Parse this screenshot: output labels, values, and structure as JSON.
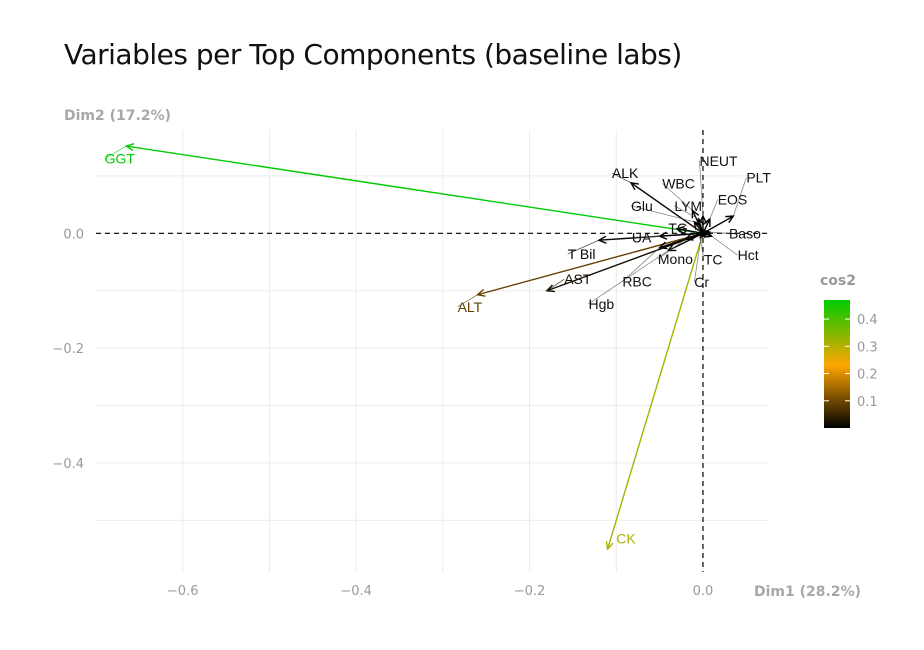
{
  "chart_data": {
    "type": "scatter",
    "subtype": "pca-variable-biplot",
    "title": "Variables per Top Components (baseline labs)",
    "xlabel": "Dim1 (28.2%)",
    "ylabel": "Dim2 (17.2%)",
    "xlim": [
      -0.7,
      0.075
    ],
    "ylim": [
      -0.59,
      0.18
    ],
    "xticks": [
      -0.6,
      -0.4,
      -0.2,
      0.0
    ],
    "xtick_labels": [
      "−0.6",
      "−0.4",
      "−0.2",
      "0.0"
    ],
    "yticks": [
      0.0,
      -0.2,
      -0.4
    ],
    "ytick_labels": [
      "0.0",
      "−0.2",
      "−0.4"
    ],
    "grid": true,
    "reference_lines": {
      "x": 0,
      "y": 0,
      "style": "dashed"
    },
    "color_scale": {
      "name": "cos2",
      "min": 0.0,
      "max": 0.47,
      "stops": [
        {
          "value": 0.0,
          "color": "#000000"
        },
        {
          "value": 0.23,
          "color": "#FFA500"
        },
        {
          "value": 0.47,
          "color": "#00CC00"
        }
      ],
      "ticks": [
        0.1,
        0.2,
        0.3,
        0.4
      ],
      "tick_labels": [
        "0.1",
        "0.2",
        "0.3",
        "0.4"
      ],
      "legend_position": "right"
    },
    "variables": [
      {
        "name": "GGT",
        "x": -0.665,
        "y": 0.152,
        "cos2": 0.47,
        "label_x": -0.69,
        "label_y": 0.13
      },
      {
        "name": "ALT",
        "x": -0.26,
        "y": -0.107,
        "cos2": 0.09,
        "label_x": -0.283,
        "label_y": -0.128
      },
      {
        "name": "CK",
        "x": -0.11,
        "y": -0.55,
        "cos2": 0.31,
        "label_x": -0.1,
        "label_y": -0.532
      },
      {
        "name": "AST",
        "x": -0.18,
        "y": -0.1,
        "cos2": 0.02,
        "label_x": -0.16,
        "label_y": -0.08
      },
      {
        "name": "T Bil",
        "x": -0.12,
        "y": -0.012,
        "cos2": 0.01,
        "label_x": -0.156,
        "label_y": -0.036
      },
      {
        "name": "RBC",
        "x": -0.05,
        "y": -0.025,
        "cos2": 0.0,
        "label_x": -0.093,
        "label_y": -0.084
      },
      {
        "name": "Hgb",
        "x": -0.04,
        "y": -0.03,
        "cos2": 0.0,
        "label_x": -0.132,
        "label_y": -0.123
      },
      {
        "name": "Mono",
        "x": -0.02,
        "y": -0.01,
        "cos2": 0.0,
        "label_x": -0.052,
        "label_y": -0.045
      },
      {
        "name": "UA",
        "x": -0.05,
        "y": -0.005,
        "cos2": 0.0,
        "label_x": -0.082,
        "label_y": -0.007
      },
      {
        "name": "TG",
        "x": -0.03,
        "y": 0.008,
        "cos2": 0.0,
        "label_x": -0.04,
        "label_y": 0.009
      },
      {
        "name": "ALK",
        "x": -0.083,
        "y": 0.088,
        "cos2": 0.01,
        "label_x": -0.105,
        "label_y": 0.105
      },
      {
        "name": "WBC",
        "x": -0.012,
        "y": 0.04,
        "cos2": 0.0,
        "label_x": -0.047,
        "label_y": 0.087
      },
      {
        "name": "Glu",
        "x": -0.01,
        "y": 0.02,
        "cos2": 0.0,
        "label_x": -0.083,
        "label_y": 0.048
      },
      {
        "name": "LYM",
        "x": -0.005,
        "y": 0.025,
        "cos2": 0.0,
        "label_x": -0.033,
        "label_y": 0.048
      },
      {
        "name": "NEUT",
        "x": 0.0,
        "y": 0.03,
        "cos2": 0.0,
        "label_x": -0.004,
        "label_y": 0.126
      },
      {
        "name": "EOS",
        "x": 0.008,
        "y": 0.025,
        "cos2": 0.0,
        "label_x": 0.017,
        "label_y": 0.059
      },
      {
        "name": "PLT",
        "x": 0.035,
        "y": 0.03,
        "cos2": 0.0,
        "label_x": 0.05,
        "label_y": 0.097
      },
      {
        "name": "Baso",
        "x": 0.008,
        "y": 0.002,
        "cos2": 0.0,
        "label_x": 0.03,
        "label_y": 0.0
      },
      {
        "name": "Hct",
        "x": 0.01,
        "y": -0.005,
        "cos2": 0.0,
        "label_x": 0.04,
        "label_y": -0.038
      },
      {
        "name": "TC",
        "x": -0.003,
        "y": -0.008,
        "cos2": 0.0,
        "label_x": 0.001,
        "label_y": -0.046
      },
      {
        "name": "Cr",
        "x": -0.002,
        "y": -0.005,
        "cos2": 0.0,
        "label_x": -0.01,
        "label_y": -0.085
      }
    ]
  }
}
